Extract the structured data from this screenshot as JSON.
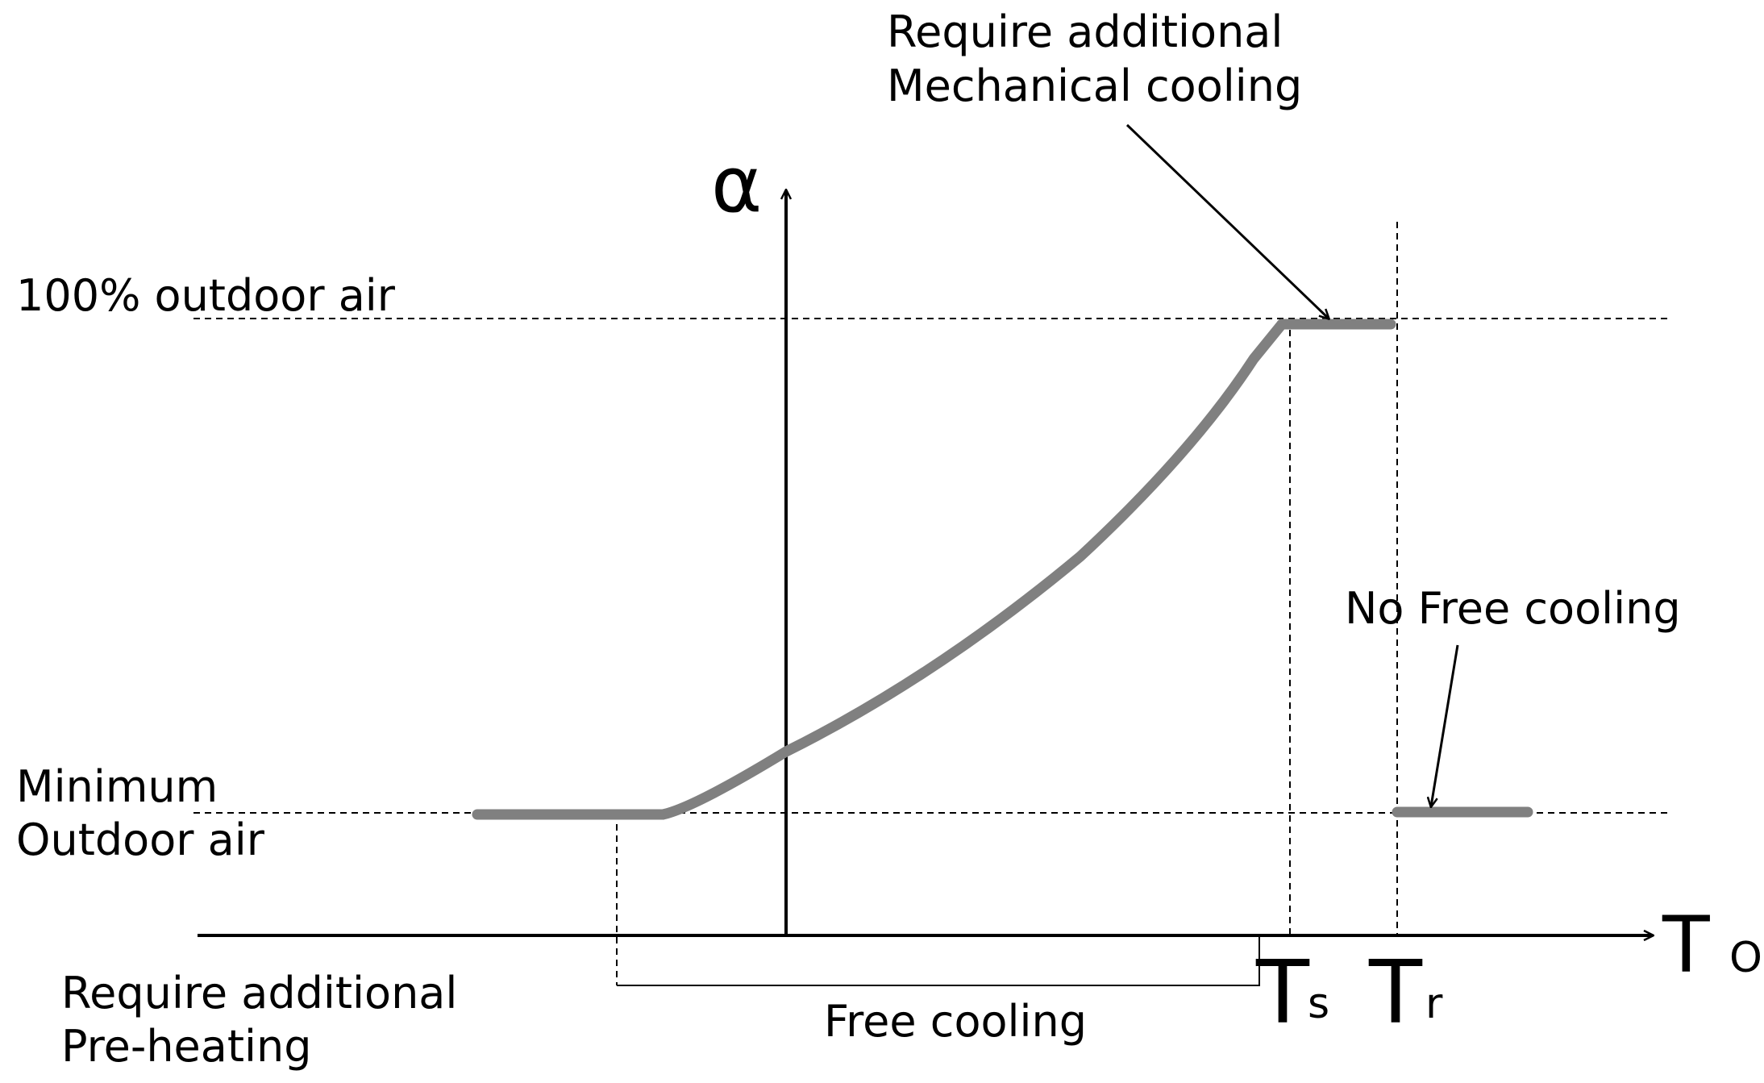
{
  "labels": {
    "top_right_annotation_line1": "Require additional",
    "top_right_annotation_line2": "Mechanical cooling",
    "level_max": "100% outdoor air",
    "level_min_line1": "Minimum",
    "level_min_line2": "Outdoor air",
    "no_free_cooling": "No Free cooling",
    "free_cooling": "Free cooling",
    "preheating_line1": "Require additional",
    "preheating_line2": "Pre-heating"
  },
  "axes": {
    "y_symbol": "α",
    "x_symbol": "T",
    "x_subscript": "O"
  },
  "markers": {
    "ts_symbol": "T",
    "ts_subscript": "s",
    "tr_symbol": "T",
    "tr_subscript": "r"
  },
  "colors": {
    "curve": "#808080",
    "ink": "#000000"
  }
}
